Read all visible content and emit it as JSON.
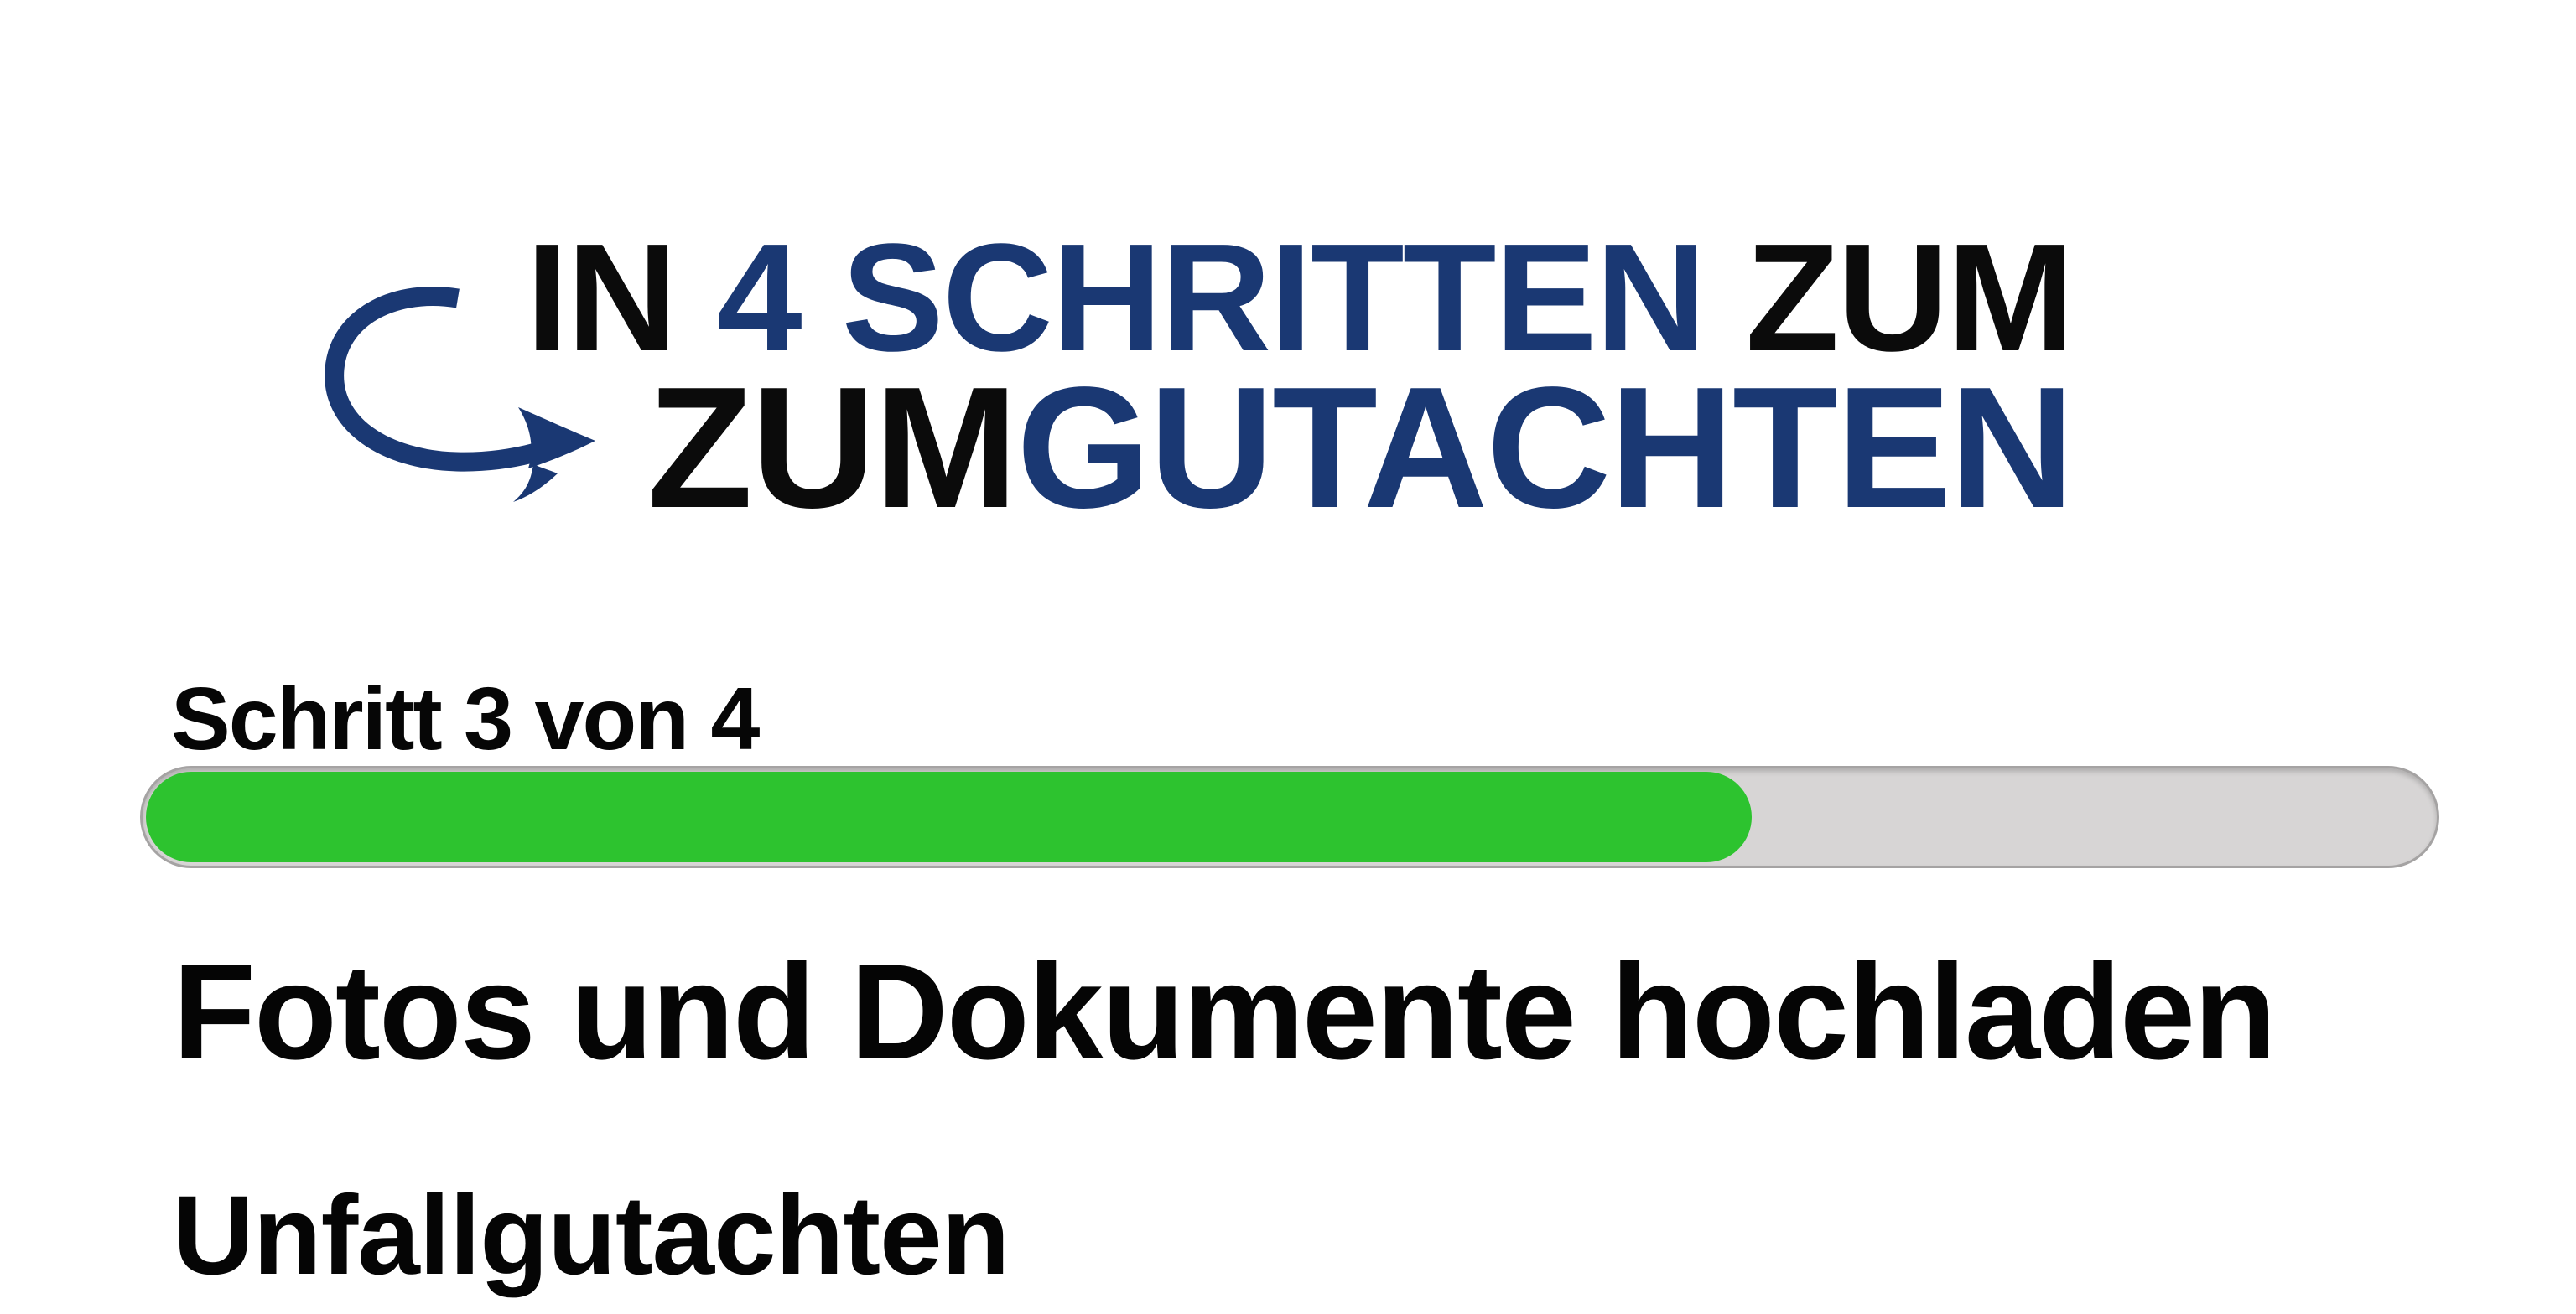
{
  "page": {
    "background": "#ffffff"
  },
  "logo": {
    "arrow_icon": "curved-swoosh-arrow",
    "line1_black_prefix": "IN ",
    "line1_blue": "4 SCHRITTEN",
    "line1_black_suffix": " ZUM",
    "line2_black": "ZUM",
    "line2_blue": "GUTACHTEN",
    "colors": {
      "blue": "#1a3873",
      "black": "#0b0b0b"
    }
  },
  "progress": {
    "step_label": "Schritt 3 von 4",
    "percent": 70,
    "colors": {
      "fill": "#2dc32f",
      "track": "#d7d5d5",
      "track_border": "#a5a3a3"
    }
  },
  "content": {
    "title": "Fotos und Dokumente hochladen",
    "subtitle": "Unfallgutachten"
  }
}
